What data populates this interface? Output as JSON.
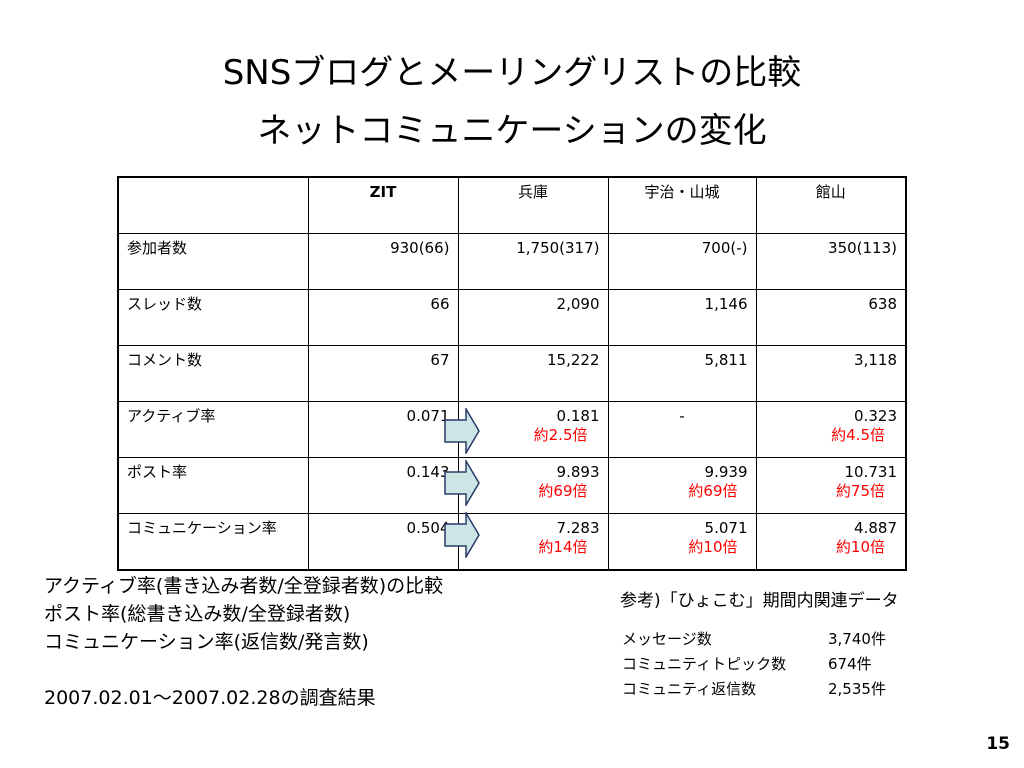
{
  "title": {
    "line1": "SNSブログとメーリングリストの比較",
    "line2": "ネットコミュニケーションの変化"
  },
  "table": {
    "headers": [
      "",
      "ZIT",
      "兵庫",
      "宇治・山城",
      "館山"
    ],
    "rows": [
      {
        "label": "参加者数",
        "cells": [
          {
            "value": "930(66)"
          },
          {
            "value": "1,750(317)"
          },
          {
            "value": "700(-)"
          },
          {
            "value": "350(113)"
          }
        ]
      },
      {
        "label": "スレッド数",
        "cells": [
          {
            "value": "66"
          },
          {
            "value": "2,090"
          },
          {
            "value": "1,146"
          },
          {
            "value": "638"
          }
        ]
      },
      {
        "label": "コメント数",
        "cells": [
          {
            "value": "67"
          },
          {
            "value": "15,222"
          },
          {
            "value": "5,811"
          },
          {
            "value": "3,118"
          }
        ]
      },
      {
        "label": "アクティブ率",
        "cells": [
          {
            "value": "0.071"
          },
          {
            "value": "0.181",
            "ratio": "約2.5倍"
          },
          {
            "value": "-"
          },
          {
            "value": "0.323",
            "ratio": "約4.5倍"
          }
        ]
      },
      {
        "label": "ポスト率",
        "cells": [
          {
            "value": "0.143"
          },
          {
            "value": "9.893",
            "ratio": "約69倍"
          },
          {
            "value": "9.939",
            "ratio": "約69倍"
          },
          {
            "value": "10.731",
            "ratio": "約75倍"
          }
        ]
      },
      {
        "label": "コミュニケーション率",
        "cells": [
          {
            "value": "0.504"
          },
          {
            "value": "7.283",
            "ratio": "約14倍"
          },
          {
            "value": "5.071",
            "ratio": "約10倍"
          },
          {
            "value": "4.887",
            "ratio": "約10倍"
          }
        ]
      }
    ]
  },
  "colors": {
    "ratio_text": "#ff0000",
    "arrow_fill": "#cce6e6",
    "arrow_stroke": "#2a3a6a"
  },
  "notes": {
    "line1": "アクティブ率(書き込み者数/全登録者数)の比較",
    "line2": "ポスト率(総書き込み数/全登録者数)",
    "line3": "コミュニケーション率(返信数/発言数)",
    "period": "2007.02.01～2007.02.28の調査結果"
  },
  "reference": {
    "title": "参考)「ひょこむ」期間内関連データ",
    "rows": [
      {
        "label": "メッセージ数",
        "value": "3,740件"
      },
      {
        "label": "コミュニティトピック数",
        "value": "674件"
      },
      {
        "label": "コミュニティ返信数",
        "value": "2,535件"
      }
    ]
  },
  "page_number": "15"
}
